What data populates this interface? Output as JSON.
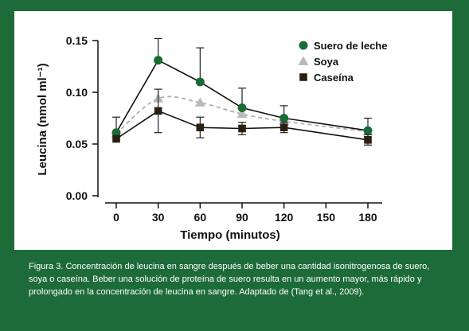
{
  "chart_data": {
    "type": "line",
    "xlabel": "Tiempo (minutos)",
    "ylabel": "Leucina (nmol ml⁻¹)",
    "x_ticks": [
      "0",
      "30",
      "60",
      "90",
      "120",
      "150",
      "180"
    ],
    "y_ticks": [
      "0.00",
      "0.05",
      "0.10",
      "0.15"
    ],
    "xlim": [
      0,
      180
    ],
    "ylim": [
      0,
      0.15
    ],
    "grid": false,
    "legend_position": "top-right",
    "series": [
      {
        "name": "Suero de leche",
        "marker": "circle",
        "color": "#1b6b35",
        "line": "solid",
        "x": [
          0,
          30,
          60,
          90,
          120,
          180
        ],
        "y": [
          0.061,
          0.131,
          0.11,
          0.085,
          0.075,
          0.063
        ],
        "error": [
          0.015,
          0.021,
          0.033,
          0.019,
          0.012,
          0.012
        ]
      },
      {
        "name": "Soya",
        "marker": "triangle",
        "color": "#b9b9b9",
        "line": "dashed",
        "x": [
          0,
          30,
          60,
          90,
          120,
          180
        ],
        "y": [
          0.06,
          0.094,
          0.09,
          0.079,
          0.072,
          0.062
        ],
        "error": [
          0,
          0,
          0,
          0,
          0,
          0
        ]
      },
      {
        "name": "Caseína",
        "marker": "square",
        "color": "#2b1f12",
        "line": "solid",
        "x": [
          0,
          30,
          60,
          90,
          120,
          180
        ],
        "y": [
          0.055,
          0.082,
          0.066,
          0.065,
          0.066,
          0.054
        ],
        "error": [
          0,
          0.021,
          0.01,
          0.006,
          0.005,
          0.005
        ]
      }
    ]
  },
  "caption": "Figura 3. Concentración de leucina en sangre después de beber una cantidad isonitrogenosa de suero, soya o caseína. Beber una solución de proteína de suero resulta en un aumento mayor, más rápido y prolongado en la concentración de leucina en sangre. Adaptado de (Tang et al., 2009).",
  "colors": {
    "frame": "#1e6b3a",
    "panel": "#ffffff"
  }
}
